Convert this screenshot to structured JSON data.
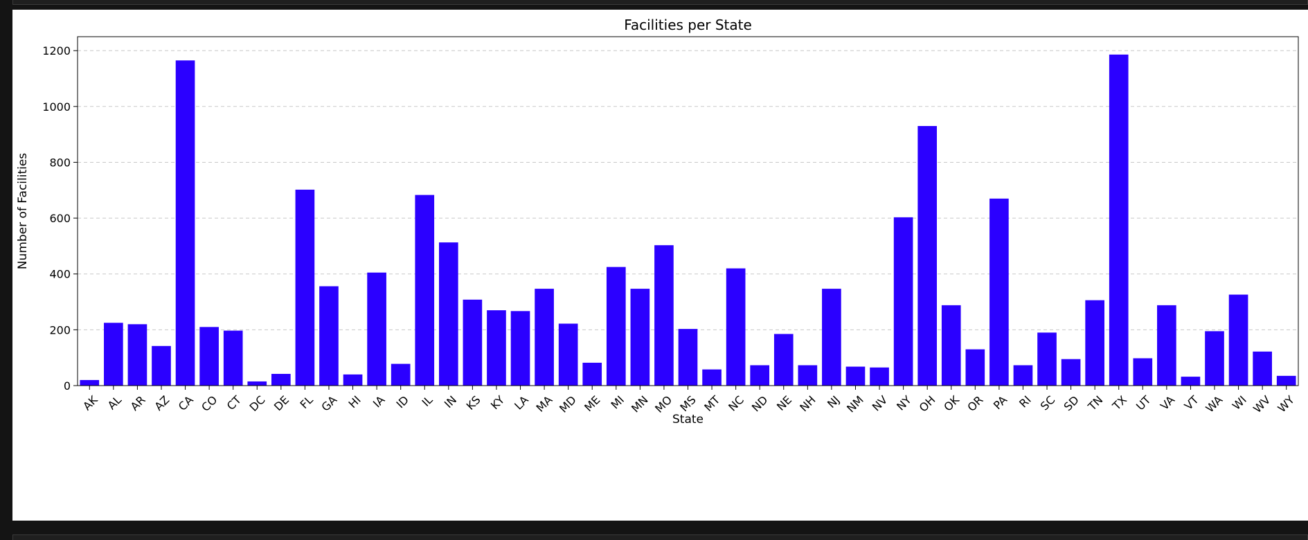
{
  "chart_data": {
    "type": "bar",
    "title": "Facilities per State",
    "xlabel": "State",
    "ylabel": "Number of Facilities",
    "ylim": [
      0,
      1250
    ],
    "yticks": [
      0,
      200,
      400,
      600,
      800,
      1000,
      1200
    ],
    "grid": "y-dashed",
    "bar_color": "#2b00ff",
    "categories": [
      "AK",
      "AL",
      "AR",
      "AZ",
      "CA",
      "CO",
      "CT",
      "DC",
      "DE",
      "FL",
      "GA",
      "HI",
      "IA",
      "ID",
      "IL",
      "IN",
      "KS",
      "KY",
      "LA",
      "MA",
      "MD",
      "ME",
      "MI",
      "MN",
      "MO",
      "MS",
      "MT",
      "NC",
      "ND",
      "NE",
      "NH",
      "NJ",
      "NM",
      "NV",
      "NY",
      "OH",
      "OK",
      "OR",
      "PA",
      "RI",
      "SC",
      "SD",
      "TN",
      "TX",
      "UT",
      "VA",
      "VT",
      "WA",
      "WI",
      "WV",
      "WY"
    ],
    "values": [
      20,
      225,
      220,
      142,
      1165,
      210,
      197,
      15,
      42,
      702,
      356,
      40,
      405,
      78,
      683,
      513,
      308,
      270,
      267,
      347,
      222,
      82,
      425,
      347,
      503,
      203,
      58,
      420,
      73,
      185,
      73,
      347,
      68,
      65,
      603,
      930,
      288,
      130,
      670,
      73,
      190,
      95,
      306,
      1186,
      98,
      288,
      32,
      195,
      326,
      122,
      35
    ]
  }
}
